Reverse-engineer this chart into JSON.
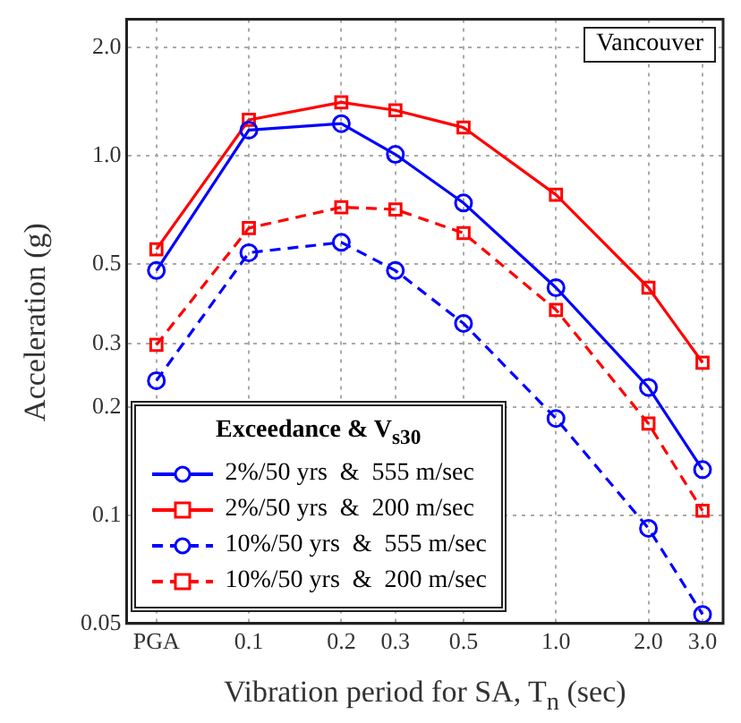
{
  "chart_data": {
    "type": "line",
    "xlabel": "Vibration period for SA, T$_{n}$ (sec)",
    "ylabel": "Acceleration (g)",
    "legend_title": "Exceedance & V$_{s30}$",
    "annotations": [
      "Vancouver"
    ],
    "x": [
      0.05,
      0.1,
      0.2,
      0.3,
      0.5,
      1.0,
      2.0,
      3.0
    ],
    "log": "xy",
    "grid": true,
    "legend": "bottom left",
    "xlim": [
      0.04,
      3.5
    ],
    "xticks": [
      {
        "value": 0.05,
        "label": "PGA"
      },
      0.1,
      0.2,
      0.3,
      0.5,
      {
        "value": 1,
        "label": "1.0"
      },
      {
        "value": 2,
        "label": "2.0"
      },
      {
        "value": 3,
        "label": "3.0"
      }
    ],
    "ylim": [
      0.05,
      2.4
    ],
    "yticks": [
      0.05,
      0.1,
      0.2,
      0.3,
      0.5,
      {
        "value": 1,
        "label": "1.0"
      },
      {
        "value": 2,
        "label": "2.0"
      }
    ],
    "series": [
      {
        "name": "2%/50 yrs  &  555 m/sec",
        "color": "#0000ff",
        "marker": "circle",
        "line_style": "solid",
        "values": [
          0.48,
          1.18,
          1.23,
          1.01,
          0.74,
          0.43,
          0.227,
          0.134
        ]
      },
      {
        "name": "2%/50 yrs  &  200 m/sec",
        "color": "#ff0000",
        "marker": "square",
        "line_style": "solid",
        "values": [
          0.55,
          1.26,
          1.41,
          1.34,
          1.2,
          0.78,
          0.43,
          0.266
        ]
      },
      {
        "name": "10%/50 yrs  &  555 m/sec",
        "color": "#0000ff",
        "marker": "circle",
        "line_style": "dashed",
        "values": [
          0.237,
          0.538,
          0.575,
          0.48,
          0.342,
          0.186,
          0.092,
          0.053
        ]
      },
      {
        "name": "10%/50 yrs  &  200 m/sec",
        "color": "#ff0000",
        "marker": "square",
        "line_style": "dashed",
        "values": [
          0.298,
          0.63,
          0.72,
          0.71,
          0.61,
          0.373,
          0.18,
          0.103
        ]
      }
    ]
  }
}
